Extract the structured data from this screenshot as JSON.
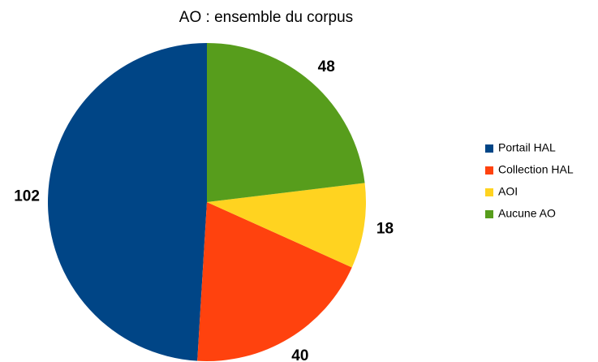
{
  "chart_data": {
    "type": "pie",
    "title": "AO : ensemble du corpus",
    "categories": [
      "Portail HAL",
      "Collection HAL",
      "AOI",
      "Aucune AO"
    ],
    "values": [
      102,
      40,
      18,
      48
    ],
    "colors": [
      "#004586",
      "#ff420e",
      "#ffd320",
      "#579d1c"
    ],
    "legend": "right"
  }
}
